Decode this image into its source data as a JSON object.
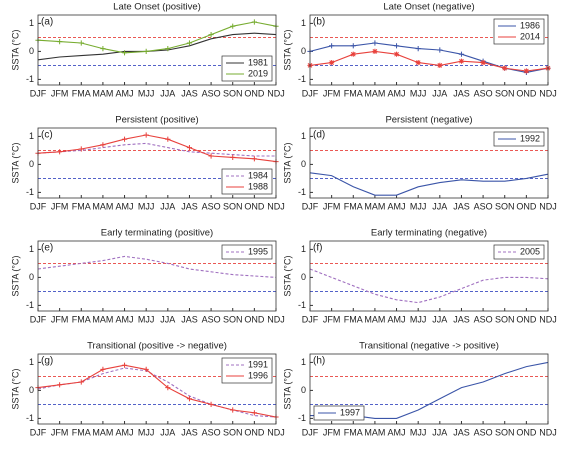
{
  "chart_data": [
    {
      "type": "line",
      "title": "Late Onset (positive)",
      "panel_label": "(a)",
      "ylabel": "SSTA (°C)",
      "categories": [
        "DJF",
        "JFM",
        "FMA",
        "MAM",
        "AMJ",
        "MJJ",
        "JJA",
        "JAS",
        "ASO",
        "SON",
        "OND",
        "NDJ"
      ],
      "ylim": [
        -1.2,
        1.3
      ],
      "yticks": [
        -1,
        0,
        1
      ],
      "legend": "lower-right",
      "ref_lines": [
        {
          "value": 0.5,
          "color": "#e8413c"
        },
        {
          "value": -0.5,
          "color": "#3b4cc0"
        }
      ],
      "series": [
        {
          "name": "1981",
          "color": "#333333",
          "dash": false,
          "marker": "none",
          "values": [
            -0.3,
            -0.2,
            -0.15,
            -0.1,
            0.0,
            0.0,
            0.05,
            0.2,
            0.45,
            0.6,
            0.65,
            0.6
          ]
        },
        {
          "name": "2019",
          "color": "#77ac30",
          "dash": false,
          "marker": "plus",
          "values": [
            0.4,
            0.35,
            0.3,
            0.1,
            -0.05,
            0.0,
            0.1,
            0.3,
            0.6,
            0.9,
            1.05,
            0.9
          ]
        }
      ]
    },
    {
      "type": "line",
      "title": "Late Onset (negative)",
      "panel_label": "(b)",
      "ylabel": "SSTA (°C)",
      "categories": [
        "DJF",
        "JFM",
        "FMA",
        "MAM",
        "AMJ",
        "MJJ",
        "JJA",
        "JAS",
        "ASO",
        "SON",
        "OND",
        "NDJ"
      ],
      "ylim": [
        -1.2,
        1.3
      ],
      "yticks": [
        -1,
        0,
        1
      ],
      "legend": "upper-right",
      "ref_lines": [
        {
          "value": 0.5,
          "color": "#e8413c"
        },
        {
          "value": -0.5,
          "color": "#3b4cc0"
        }
      ],
      "series": [
        {
          "name": "1986",
          "color": "#3b55a8",
          "dash": false,
          "marker": "plus",
          "values": [
            0.0,
            0.2,
            0.2,
            0.3,
            0.2,
            0.1,
            0.05,
            -0.1,
            -0.35,
            -0.6,
            -0.75,
            -0.6
          ]
        },
        {
          "name": "2014",
          "color": "#e8413c",
          "dash": false,
          "marker": "star",
          "values": [
            -0.5,
            -0.4,
            -0.1,
            0.0,
            -0.1,
            -0.4,
            -0.5,
            -0.35,
            -0.4,
            -0.6,
            -0.7,
            -0.6
          ]
        }
      ]
    },
    {
      "type": "line",
      "title": "Persistent (positive)",
      "panel_label": "(c)",
      "ylabel": "SSTA (°C)",
      "categories": [
        "DJF",
        "JFM",
        "FMA",
        "MAM",
        "AMJ",
        "MJJ",
        "JJA",
        "JAS",
        "ASO",
        "SON",
        "OND",
        "NDJ"
      ],
      "ylim": [
        -1.2,
        1.3
      ],
      "yticks": [
        -1,
        0,
        1
      ],
      "legend": "lower-right",
      "ref_lines": [
        {
          "value": 0.5,
          "color": "#e8413c"
        },
        {
          "value": -0.5,
          "color": "#3b4cc0"
        }
      ],
      "series": [
        {
          "name": "1984",
          "color": "#a070c0",
          "dash": true,
          "marker": "none",
          "values": [
            0.4,
            0.45,
            0.5,
            0.6,
            0.7,
            0.75,
            0.6,
            0.45,
            0.4,
            0.35,
            0.3,
            0.3
          ]
        },
        {
          "name": "1988",
          "color": "#e8413c",
          "dash": false,
          "marker": "plus",
          "values": [
            0.4,
            0.45,
            0.55,
            0.7,
            0.9,
            1.05,
            0.9,
            0.6,
            0.3,
            0.25,
            0.2,
            0.1
          ]
        }
      ]
    },
    {
      "type": "line",
      "title": "Persistent (negative)",
      "panel_label": "(d)",
      "ylabel": "SSTA (°C)",
      "categories": [
        "DJF",
        "JFM",
        "FMA",
        "MAM",
        "AMJ",
        "MJJ",
        "JJA",
        "JAS",
        "ASO",
        "SON",
        "OND",
        "NDJ"
      ],
      "ylim": [
        -1.2,
        1.3
      ],
      "yticks": [
        -1,
        0,
        1
      ],
      "legend": "upper-right",
      "ref_lines": [
        {
          "value": 0.5,
          "color": "#e8413c"
        },
        {
          "value": -0.5,
          "color": "#3b4cc0"
        }
      ],
      "series": [
        {
          "name": "1992",
          "color": "#3b55a8",
          "dash": false,
          "marker": "none",
          "values": [
            -0.3,
            -0.4,
            -0.8,
            -1.1,
            -1.1,
            -0.8,
            -0.65,
            -0.55,
            -0.6,
            -0.6,
            -0.5,
            -0.35
          ]
        }
      ]
    },
    {
      "type": "line",
      "title": "Early terminating (positive)",
      "panel_label": "(e)",
      "ylabel": "SSTA (°C)",
      "categories": [
        "DJF",
        "JFM",
        "FMA",
        "MAM",
        "AMJ",
        "MJJ",
        "JJA",
        "JAS",
        "ASO",
        "SON",
        "OND",
        "NDJ"
      ],
      "ylim": [
        -1.2,
        1.3
      ],
      "yticks": [
        -1,
        0,
        1
      ],
      "legend": "upper-right",
      "ref_lines": [
        {
          "value": 0.5,
          "color": "#e8413c"
        },
        {
          "value": -0.5,
          "color": "#3b4cc0"
        }
      ],
      "series": [
        {
          "name": "1995",
          "color": "#a070c0",
          "dash": true,
          "marker": "none",
          "values": [
            0.3,
            0.4,
            0.5,
            0.6,
            0.75,
            0.65,
            0.5,
            0.3,
            0.2,
            0.1,
            0.05,
            0.0
          ]
        }
      ]
    },
    {
      "type": "line",
      "title": "Early terminating (negative)",
      "panel_label": "(f)",
      "ylabel": "SSTA (°C)",
      "categories": [
        "DJF",
        "JFM",
        "FMA",
        "MAM",
        "AMJ",
        "MJJ",
        "JJA",
        "JAS",
        "ASO",
        "SON",
        "OND",
        "NDJ"
      ],
      "ylim": [
        -1.2,
        1.3
      ],
      "yticks": [
        -1,
        0,
        1
      ],
      "legend": "upper-right",
      "ref_lines": [
        {
          "value": 0.5,
          "color": "#e8413c"
        },
        {
          "value": -0.5,
          "color": "#3b4cc0"
        }
      ],
      "series": [
        {
          "name": "2005",
          "color": "#a070c0",
          "dash": true,
          "marker": "none",
          "values": [
            0.3,
            0.0,
            -0.3,
            -0.6,
            -0.8,
            -0.9,
            -0.7,
            -0.4,
            -0.1,
            0.0,
            0.0,
            -0.05
          ]
        }
      ]
    },
    {
      "type": "line",
      "title": "Transitional (positive -> negative)",
      "panel_label": "(g)",
      "ylabel": "SSTA (°C)",
      "categories": [
        "DJF",
        "JFM",
        "FMA",
        "MAM",
        "AMJ",
        "MJJ",
        "JJA",
        "JAS",
        "ASO",
        "SON",
        "OND",
        "NDJ"
      ],
      "ylim": [
        -1.2,
        1.3
      ],
      "yticks": [
        -1,
        0,
        1
      ],
      "legend": "upper-right",
      "ref_lines": [
        {
          "value": 0.5,
          "color": "#e8413c"
        },
        {
          "value": -0.5,
          "color": "#3b4cc0"
        }
      ],
      "series": [
        {
          "name": "1991",
          "color": "#a070c0",
          "dash": true,
          "marker": "none",
          "values": [
            0.05,
            0.2,
            0.3,
            0.6,
            0.8,
            0.7,
            0.3,
            -0.2,
            -0.5,
            -0.7,
            -0.9,
            -0.95
          ]
        },
        {
          "name": "1996",
          "color": "#e8413c",
          "dash": false,
          "marker": "plus",
          "values": [
            0.1,
            0.2,
            0.3,
            0.75,
            0.9,
            0.75,
            0.1,
            -0.3,
            -0.5,
            -0.7,
            -0.8,
            -0.95
          ]
        }
      ]
    },
    {
      "type": "line",
      "title": "Transitional (negative -> positive)",
      "panel_label": "(h)",
      "ylabel": "SSTA (°C)",
      "categories": [
        "DJF",
        "JFM",
        "FMA",
        "MAM",
        "AMJ",
        "MJJ",
        "JJA",
        "JAS",
        "ASO",
        "SON",
        "OND",
        "NDJ"
      ],
      "ylim": [
        -1.2,
        1.3
      ],
      "yticks": [
        -1,
        0,
        1
      ],
      "legend": "lower-left",
      "ref_lines": [
        {
          "value": 0.5,
          "color": "#e8413c"
        },
        {
          "value": -0.5,
          "color": "#3b4cc0"
        }
      ],
      "series": [
        {
          "name": "1997",
          "color": "#3b55a8",
          "dash": false,
          "marker": "none",
          "values": [
            -0.9,
            -0.9,
            -0.9,
            -1.0,
            -1.0,
            -0.7,
            -0.3,
            0.1,
            0.3,
            0.6,
            0.85,
            1.0
          ]
        }
      ]
    }
  ]
}
